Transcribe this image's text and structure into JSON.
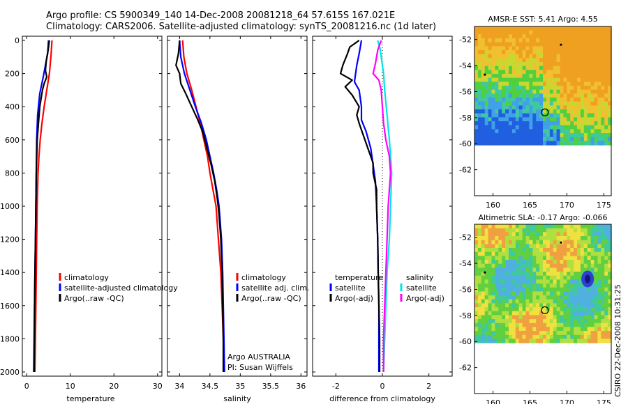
{
  "header": {
    "line1": "Argo profile: CS 5900349_140 14-Dec-2008 20081218_64 57.615S 167.021E",
    "line2": "Climatology: CARS2006. Satellite-adjusted climatology: synTS_20081216.nc (1d later)"
  },
  "colors": {
    "climatology": "#ff0000",
    "satellite": "#0000ff",
    "argo": "#000000",
    "sal_satellite": "#00e5e5",
    "sal_argo": "#ff00ff"
  },
  "chart_data": [
    {
      "id": "temperature",
      "type": "line",
      "xlabel": "temperature",
      "ylabel": "",
      "xlim": [
        -1,
        31
      ],
      "ylim": [
        2000,
        0
      ],
      "xticks": [
        0,
        10,
        20,
        30
      ],
      "yticks": [
        0,
        200,
        400,
        600,
        800,
        1000,
        1200,
        1400,
        1600,
        1800,
        2000
      ],
      "legend": [
        "climatology",
        "satellite-adjusted climatology",
        "Argo(..raw -QC)"
      ],
      "series": [
        {
          "name": "climatology",
          "color": "#ff0000",
          "points": [
            [
              5.8,
              0
            ],
            [
              5.6,
              80
            ],
            [
              5.2,
              200
            ],
            [
              4.6,
              300
            ],
            [
              4.0,
              400
            ],
            [
              3.5,
              500
            ],
            [
              3.1,
              600
            ],
            [
              2.8,
              700
            ],
            [
              2.6,
              800
            ],
            [
              2.4,
              1000
            ],
            [
              2.3,
              1200
            ],
            [
              2.2,
              1400
            ],
            [
              2.1,
              1600
            ],
            [
              2.0,
              1800
            ],
            [
              1.9,
              2000
            ]
          ]
        },
        {
          "name": "satellite-adjusted climatology",
          "color": "#0000ff",
          "points": [
            [
              5.0,
              0
            ],
            [
              4.8,
              80
            ],
            [
              4.3,
              150
            ],
            [
              3.8,
              220
            ],
            [
              3.0,
              320
            ],
            [
              2.5,
              450
            ],
            [
              2.3,
              600
            ],
            [
              2.2,
              800
            ],
            [
              2.1,
              1000
            ],
            [
              2.0,
              1200
            ],
            [
              1.9,
              1400
            ],
            [
              1.8,
              1600
            ],
            [
              1.7,
              1800
            ],
            [
              1.6,
              2000
            ]
          ]
        },
        {
          "name": "Argo(..raw -QC)",
          "color": "#000000",
          "points": [
            [
              5.2,
              0
            ],
            [
              4.9,
              60
            ],
            [
              4.5,
              120
            ],
            [
              4.3,
              180
            ],
            [
              4.6,
              220
            ],
            [
              4.0,
              260
            ],
            [
              3.6,
              300
            ],
            [
              3.0,
              400
            ],
            [
              2.7,
              500
            ],
            [
              2.4,
              600
            ],
            [
              2.2,
              800
            ],
            [
              2.1,
              1000
            ],
            [
              2.0,
              1200
            ],
            [
              1.9,
              1400
            ],
            [
              1.8,
              1600
            ],
            [
              1.75,
              1800
            ],
            [
              1.7,
              2000
            ]
          ]
        }
      ]
    },
    {
      "id": "salinity",
      "type": "line",
      "xlabel": "salinity",
      "ylabel": "",
      "xlim": [
        33.8,
        36.1
      ],
      "ylim": [
        2000,
        0
      ],
      "xticks": [
        34,
        34.5,
        35,
        35.5,
        36
      ],
      "yticks": [
        0,
        200,
        400,
        600,
        800,
        1000,
        1200,
        1400,
        1600,
        1800,
        2000
      ],
      "legend": [
        "climatology",
        "satellite adj. clim.",
        "Argo(..raw -QC)"
      ],
      "annotations": [
        "Argo AUSTRALIA",
        "PI: Susan Wijffels"
      ],
      "series": [
        {
          "name": "climatology",
          "color": "#ff0000",
          "points": [
            [
              34.05,
              0
            ],
            [
              34.07,
              100
            ],
            [
              34.12,
              200
            ],
            [
              34.2,
              300
            ],
            [
              34.27,
              400
            ],
            [
              34.34,
              500
            ],
            [
              34.4,
              600
            ],
            [
              34.46,
              700
            ],
            [
              34.5,
              800
            ],
            [
              34.55,
              900
            ],
            [
              34.6,
              1000
            ],
            [
              34.64,
              1200
            ],
            [
              34.68,
              1400
            ],
            [
              34.7,
              1600
            ],
            [
              34.72,
              1800
            ],
            [
              34.73,
              2000
            ]
          ]
        },
        {
          "name": "satellite adj. clim.",
          "color": "#0000ff",
          "points": [
            [
              34.0,
              0
            ],
            [
              34.02,
              100
            ],
            [
              34.08,
              200
            ],
            [
              34.17,
              300
            ],
            [
              34.26,
              400
            ],
            [
              34.36,
              500
            ],
            [
              34.44,
              600
            ],
            [
              34.5,
              700
            ],
            [
              34.56,
              800
            ],
            [
              34.61,
              900
            ],
            [
              34.65,
              1000
            ],
            [
              34.69,
              1200
            ],
            [
              34.71,
              1400
            ],
            [
              34.72,
              1600
            ],
            [
              34.73,
              1800
            ],
            [
              34.74,
              2000
            ]
          ]
        },
        {
          "name": "Argo(..raw -QC)",
          "color": "#000000",
          "points": [
            [
              34.0,
              0
            ],
            [
              33.98,
              80
            ],
            [
              33.94,
              150
            ],
            [
              34.0,
              200
            ],
            [
              34.02,
              260
            ],
            [
              34.1,
              320
            ],
            [
              34.2,
              400
            ],
            [
              34.3,
              480
            ],
            [
              34.38,
              550
            ],
            [
              34.45,
              650
            ],
            [
              34.52,
              750
            ],
            [
              34.58,
              850
            ],
            [
              34.62,
              950
            ],
            [
              34.65,
              1050
            ],
            [
              34.68,
              1200
            ],
            [
              34.7,
              1400
            ],
            [
              34.71,
              1600
            ],
            [
              34.72,
              1800
            ],
            [
              34.72,
              2000
            ]
          ]
        }
      ]
    },
    {
      "id": "difference",
      "type": "line",
      "xlabel": "difference from climatology",
      "ylabel": "",
      "xlim": [
        -3,
        3
      ],
      "ylim": [
        2000,
        0
      ],
      "xticks": [
        -2,
        0,
        2
      ],
      "yticks": [
        0,
        200,
        400,
        600,
        800,
        1000,
        1200,
        1400,
        1600,
        1800,
        2000
      ],
      "legend_left_title": "temperature",
      "legend_left": [
        "satellite",
        "Argo(-adj)"
      ],
      "legend_right_title": "salinity",
      "legend_right": [
        "satellite",
        "Argo(-adj)"
      ],
      "series": [
        {
          "name": "temperature satellite",
          "color": "#0000ff",
          "points": [
            [
              -0.9,
              0
            ],
            [
              -1.0,
              80
            ],
            [
              -1.1,
              150
            ],
            [
              -1.2,
              250
            ],
            [
              -1.0,
              300
            ],
            [
              -0.9,
              400
            ],
            [
              -0.9,
              480
            ],
            [
              -0.7,
              550
            ],
            [
              -0.5,
              650
            ],
            [
              -0.4,
              750
            ],
            [
              -0.3,
              850
            ],
            [
              -0.25,
              1000
            ],
            [
              -0.2,
              1200
            ],
            [
              -0.18,
              1400
            ],
            [
              -0.15,
              1600
            ],
            [
              -0.15,
              1800
            ],
            [
              -0.15,
              2000
            ]
          ]
        },
        {
          "name": "temperature Argo(-adj)",
          "color": "#000000",
          "points": [
            [
              -1.0,
              0
            ],
            [
              -1.4,
              40
            ],
            [
              -1.5,
              80
            ],
            [
              -1.7,
              150
            ],
            [
              -1.8,
              200
            ],
            [
              -1.3,
              240
            ],
            [
              -1.6,
              280
            ],
            [
              -1.3,
              330
            ],
            [
              -1.0,
              400
            ],
            [
              -1.1,
              450
            ],
            [
              -1.0,
              500
            ],
            [
              -0.8,
              580
            ],
            [
              -0.6,
              660
            ],
            [
              -0.4,
              740
            ],
            [
              -0.4,
              800
            ],
            [
              -0.25,
              900
            ],
            [
              -0.25,
              1000
            ],
            [
              -0.2,
              1200
            ],
            [
              -0.18,
              1400
            ],
            [
              -0.15,
              1600
            ],
            [
              -0.12,
              1800
            ],
            [
              -0.12,
              2000
            ]
          ]
        },
        {
          "name": "salinity satellite",
          "color": "#00e5e5",
          "points": [
            [
              -0.2,
              0
            ],
            [
              -0.1,
              50
            ],
            [
              -0.05,
              100
            ],
            [
              0.05,
              200
            ],
            [
              0.1,
              300
            ],
            [
              0.2,
              450
            ],
            [
              0.3,
              600
            ],
            [
              0.35,
              700
            ],
            [
              0.4,
              800
            ],
            [
              0.35,
              1000
            ],
            [
              0.3,
              1200
            ],
            [
              0.2,
              1400
            ],
            [
              0.15,
              1600
            ],
            [
              0.1,
              1800
            ],
            [
              0.05,
              2000
            ]
          ]
        },
        {
          "name": "salinity Argo(-adj)",
          "color": "#ff00ff",
          "points": [
            [
              -0.05,
              0
            ],
            [
              -0.2,
              60
            ],
            [
              -0.3,
              140
            ],
            [
              -0.4,
              200
            ],
            [
              -0.15,
              240
            ],
            [
              -0.05,
              300
            ],
            [
              0.0,
              400
            ],
            [
              0.05,
              500
            ],
            [
              0.15,
              600
            ],
            [
              0.3,
              700
            ],
            [
              0.35,
              800
            ],
            [
              0.3,
              900
            ],
            [
              0.25,
              1000
            ],
            [
              0.2,
              1200
            ],
            [
              0.15,
              1400
            ],
            [
              0.1,
              1600
            ],
            [
              0.05,
              1800
            ],
            [
              0.05,
              2000
            ]
          ]
        }
      ]
    },
    {
      "id": "sst_map",
      "type": "heatmap",
      "title": "AMSR-E SST: 5.41 Argo: 4.55",
      "xlim": [
        157.5,
        176
      ],
      "ylim": [
        -64,
        -51
      ],
      "xticks": [
        160,
        165,
        170,
        175
      ],
      "yticks": [
        -52,
        -54,
        -56,
        -58,
        -60,
        -62
      ],
      "data_south_limit": -60.1,
      "marker": [
        167.02,
        -57.6
      ]
    },
    {
      "id": "sla_map",
      "type": "heatmap",
      "title": "Altimetric SLA: -0.17 Argo: -0.066",
      "xlim": [
        157.5,
        176
      ],
      "ylim": [
        -64,
        -51
      ],
      "xticks": [
        160,
        165,
        170,
        175
      ],
      "yticks": [
        -52,
        -54,
        -56,
        -58,
        -60,
        -62
      ],
      "data_south_limit": -60.1,
      "marker": [
        167.02,
        -57.6
      ]
    }
  ],
  "footer": {
    "stamp": "CSIRO 22-Dec-2008 10:31:25"
  }
}
